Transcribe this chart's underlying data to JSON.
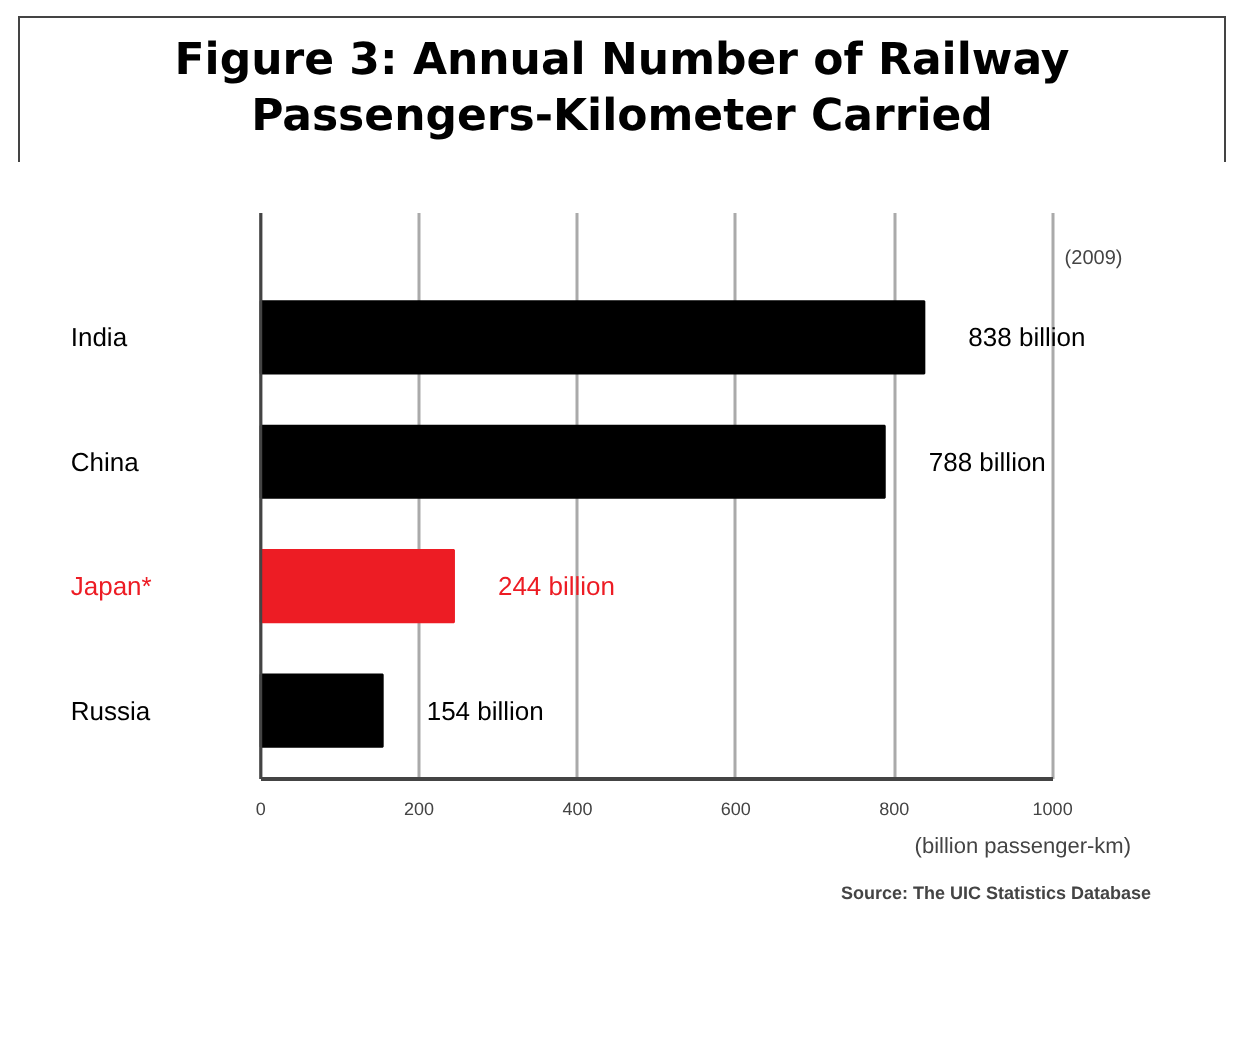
{
  "chart_data": {
    "type": "bar",
    "orientation": "horizontal",
    "title": "Figure 3: Annual Number of Railway Passengers-Kilometer Carried",
    "subtitle": "(2009)",
    "xlabel": "(billion passenger-km)",
    "categories": [
      "India",
      "China",
      "Japan*",
      "Russia"
    ],
    "values": [
      838,
      788,
      244,
      154
    ],
    "colors": [
      "#000000",
      "#000000",
      "#ed1c24",
      "#000000"
    ],
    "value_labels": [
      "838 billion",
      "788 billion",
      "244 billion",
      "154 billion"
    ],
    "xlim": [
      0,
      1000
    ],
    "xticks": [
      0,
      200,
      400,
      600,
      800,
      1000
    ],
    "grid": "x",
    "annotations": [
      "Source: The UIC Statistics Database"
    ]
  }
}
